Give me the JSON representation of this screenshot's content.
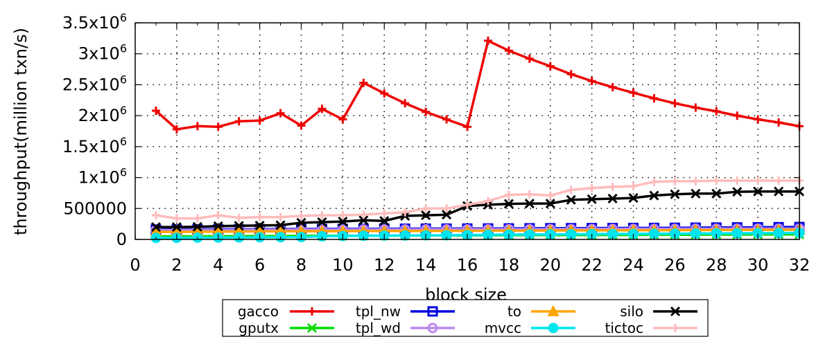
{
  "chart_data": {
    "type": "line",
    "xlabel": "block size",
    "ylabel": "throughput(million txn/s)",
    "xlim": [
      0,
      32
    ],
    "ylim": [
      0,
      3500000
    ],
    "x_ticks": [
      0,
      2,
      4,
      6,
      8,
      10,
      12,
      14,
      16,
      18,
      20,
      22,
      24,
      26,
      28,
      30,
      32
    ],
    "y_ticks": [
      {
        "value": 0,
        "label": "0",
        "sup": ""
      },
      {
        "value": 500000,
        "label": "500000",
        "sup": ""
      },
      {
        "value": 1000000,
        "label": "1x10",
        "sup": "6"
      },
      {
        "value": 1500000,
        "label": "1.5x10",
        "sup": "6"
      },
      {
        "value": 2000000,
        "label": "2x10",
        "sup": "6"
      },
      {
        "value": 2500000,
        "label": "2.5x10",
        "sup": "6"
      },
      {
        "value": 3000000,
        "label": "3x10",
        "sup": "6"
      },
      {
        "value": 3500000,
        "label": "3.5x10",
        "sup": "6"
      }
    ],
    "grid": true,
    "legend_position": "bottom",
    "x": [
      1,
      2,
      3,
      4,
      5,
      6,
      7,
      8,
      9,
      10,
      11,
      12,
      13,
      14,
      15,
      16,
      17,
      18,
      19,
      20,
      21,
      22,
      23,
      24,
      25,
      26,
      27,
      28,
      29,
      30,
      31,
      32
    ],
    "series": [
      {
        "name": "gacco",
        "color": "#ee0000",
        "marker": "plus",
        "values": [
          2080000,
          1780000,
          1830000,
          1820000,
          1910000,
          1920000,
          2040000,
          1840000,
          2110000,
          1940000,
          2530000,
          2360000,
          2200000,
          2060000,
          1940000,
          1820000,
          3210000,
          3050000,
          2920000,
          2800000,
          2670000,
          2560000,
          2460000,
          2370000,
          2280000,
          2200000,
          2130000,
          2070000,
          2000000,
          1940000,
          1890000,
          1830000
        ]
      },
      {
        "name": "gputx",
        "color": "#00dd00",
        "marker": "cross",
        "values": [
          50000,
          50000,
          50000,
          52000,
          52000,
          55000,
          55000,
          58000,
          58000,
          60000,
          60000,
          62000,
          62000,
          65000,
          65000,
          65000,
          68000,
          68000,
          70000,
          70000,
          70000,
          72000,
          72000,
          72000,
          75000,
          75000,
          75000,
          78000,
          78000,
          80000,
          80000,
          80000
        ]
      },
      {
        "name": "tpl_nw",
        "color": "#0000dd",
        "marker": "square",
        "values": [
          160000,
          160000,
          162000,
          164000,
          165000,
          166000,
          167000,
          168000,
          169000,
          170000,
          171000,
          172000,
          173000,
          174000,
          175000,
          176000,
          177000,
          178000,
          180000,
          181000,
          182000,
          183000,
          184000,
          185000,
          186000,
          188000,
          190000,
          192000,
          194000,
          196000,
          198000,
          200000
        ]
      },
      {
        "name": "tpl_wd",
        "color": "#bb88ee",
        "marker": "circle-open",
        "values": [
          150000,
          150000,
          152000,
          154000,
          155000,
          156000,
          157000,
          158000,
          159000,
          160000,
          161000,
          162000,
          162000,
          163000,
          163000,
          164000,
          165000,
          166000,
          167000,
          168000,
          168000,
          169000,
          170000,
          170000,
          171000,
          172000,
          173000,
          174000,
          174000,
          175000,
          175000,
          176000
        ]
      },
      {
        "name": "to",
        "color": "#ffa500",
        "marker": "triangle",
        "values": [
          120000,
          122000,
          124000,
          126000,
          128000,
          130000,
          131000,
          132000,
          133000,
          134000,
          135000,
          136000,
          137000,
          138000,
          139000,
          140000,
          141000,
          142000,
          143000,
          144000,
          145000,
          146000,
          147000,
          148000,
          149000,
          150000,
          151000,
          152000,
          153000,
          154000,
          155000,
          156000
        ]
      },
      {
        "name": "mvcc",
        "color": "#00e5ee",
        "marker": "circle-filled",
        "values": [
          25000,
          26000,
          28000,
          30000,
          32000,
          34000,
          36000,
          38000,
          50000,
          55000,
          60000,
          62000,
          64000,
          66000,
          68000,
          70000,
          75000,
          78000,
          80000,
          82000,
          84000,
          86000,
          88000,
          90000,
          92000,
          94000,
          96000,
          98000,
          100000,
          102000,
          104000,
          106000
        ]
      },
      {
        "name": "silo",
        "color": "#000000",
        "marker": "x",
        "values": [
          200000,
          200000,
          205000,
          215000,
          220000,
          225000,
          230000,
          270000,
          280000,
          290000,
          310000,
          300000,
          380000,
          390000,
          400000,
          540000,
          560000,
          575000,
          580000,
          580000,
          640000,
          650000,
          660000,
          670000,
          710000,
          730000,
          740000,
          740000,
          770000,
          775000,
          775000,
          775000
        ]
      },
      {
        "name": "tictoc",
        "color": "#ffbbbb",
        "marker": "plus",
        "values": [
          390000,
          340000,
          340000,
          390000,
          350000,
          360000,
          360000,
          380000,
          390000,
          390000,
          400000,
          420000,
          440000,
          500000,
          500000,
          560000,
          620000,
          720000,
          730000,
          710000,
          800000,
          830000,
          850000,
          860000,
          930000,
          940000,
          940000,
          950000,
          950000,
          950000,
          950000,
          950000
        ]
      }
    ]
  }
}
